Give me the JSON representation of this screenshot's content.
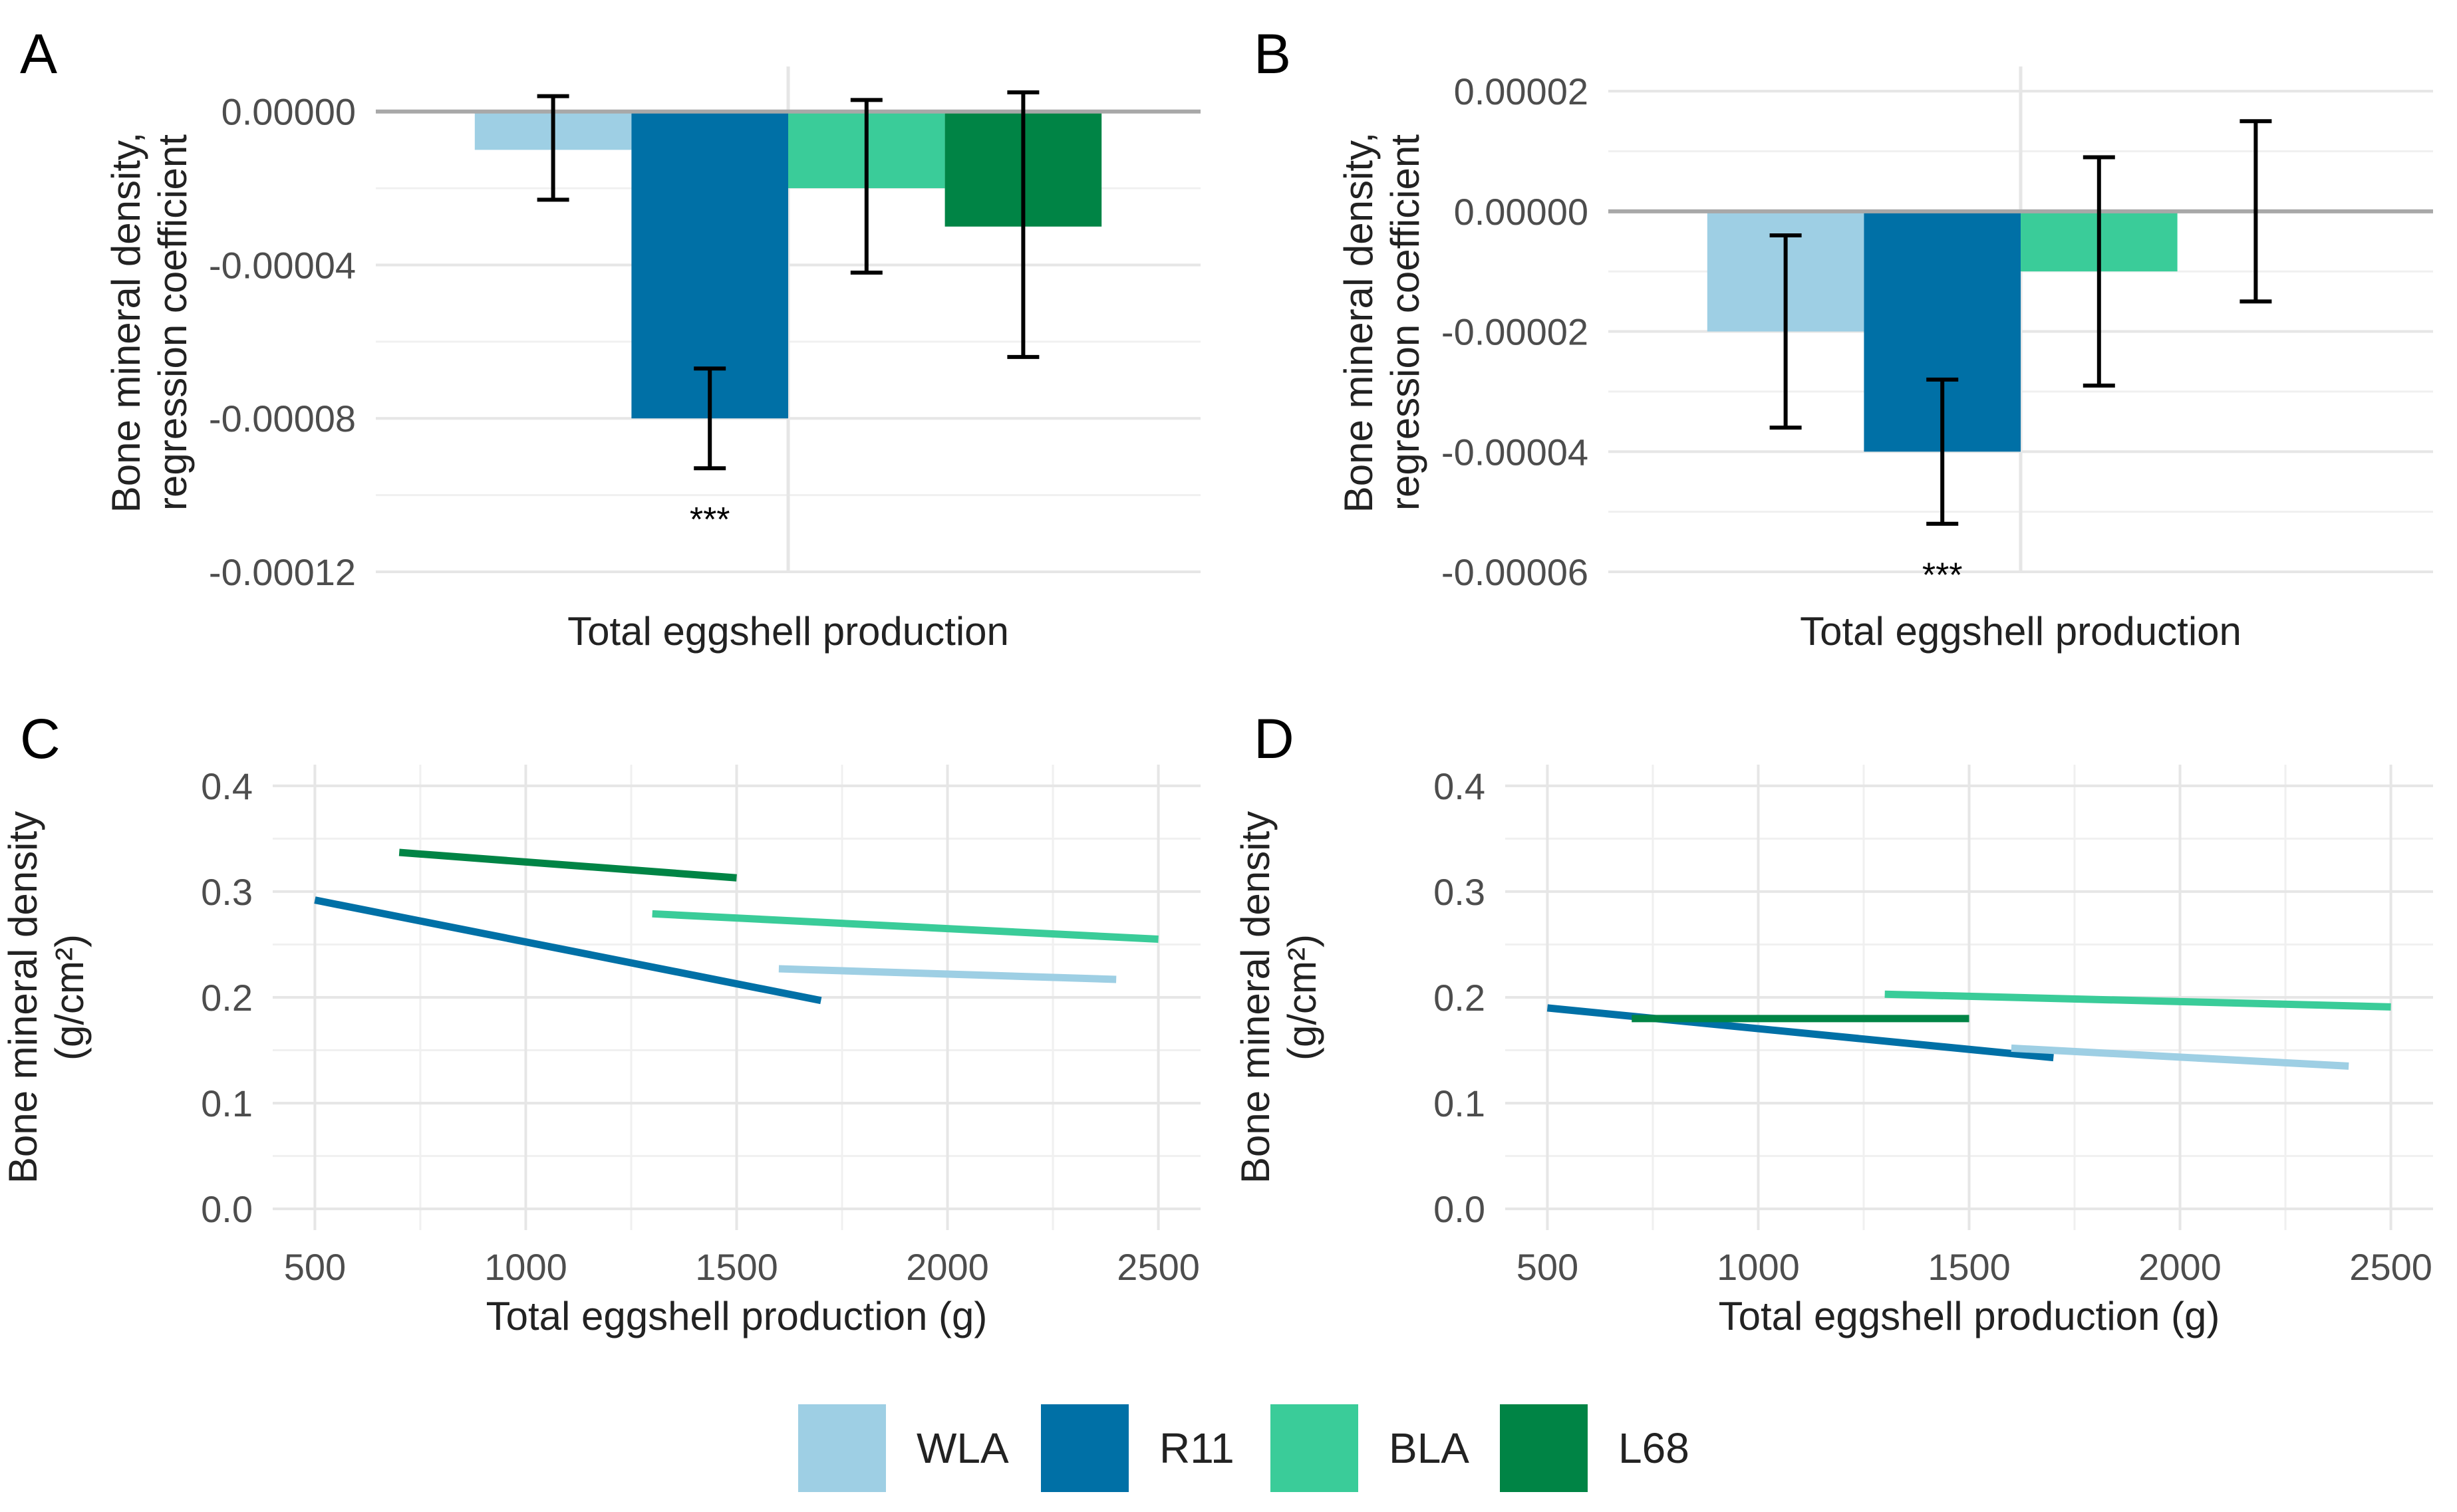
{
  "colors": {
    "WLA": "#9ecfe4",
    "R11": "#0070a6",
    "BLA": "#3acc99",
    "L68": "#008445",
    "grid": "#e6e6e6",
    "zero_line": "#a8a8a8",
    "text": "#222222",
    "tick": "#4d4d4d"
  },
  "legend": {
    "items": [
      {
        "key": "WLA",
        "label": "WLA"
      },
      {
        "key": "R11",
        "label": "R11"
      },
      {
        "key": "BLA",
        "label": "BLA"
      },
      {
        "key": "L68",
        "label": "L68"
      }
    ]
  },
  "chart_data": [
    {
      "panel": "A",
      "type": "bar",
      "xlabel": "Total eggshell production",
      "ylabel_lines": [
        "Bone mineral density,",
        "regression coefficient"
      ],
      "ylim": [
        -0.00012,
        1e-05
      ],
      "yticks": [
        0.0,
        -4e-05,
        -8e-05,
        -0.00012
      ],
      "ytick_labels": [
        "0.00000",
        "-0.00004",
        "-0.00008",
        "-0.00012"
      ],
      "bars": [
        {
          "group": "WLA",
          "value": -1e-05,
          "lower": -2.3e-05,
          "upper": 4e-06,
          "label": ""
        },
        {
          "group": "R11",
          "value": -8e-05,
          "lower": -9.3e-05,
          "upper": -6.7e-05,
          "label": "***"
        },
        {
          "group": "BLA",
          "value": -2e-05,
          "lower": -4.2e-05,
          "upper": 3e-06,
          "label": ""
        },
        {
          "group": "L68",
          "value": -3e-05,
          "lower": -6.4e-05,
          "upper": 5e-06,
          "label": ""
        }
      ]
    },
    {
      "panel": "B",
      "type": "bar",
      "xlabel": "Total eggshell production",
      "ylabel_lines": [
        "Bone mineral density,",
        "regression coefficient"
      ],
      "ylim": [
        -6e-05,
        2.3e-05
      ],
      "yticks": [
        2e-05,
        0.0,
        -2e-05,
        -4e-05,
        -6e-05
      ],
      "ytick_labels": [
        "0.00002",
        "0.00000",
        "-0.00002",
        "-0.00004",
        "-0.00006"
      ],
      "bars": [
        {
          "group": "WLA",
          "value": -2e-05,
          "lower": -3.6e-05,
          "upper": -4e-06,
          "label": ""
        },
        {
          "group": "R11",
          "value": -4e-05,
          "lower": -5.2e-05,
          "upper": -2.8e-05,
          "label": "***"
        },
        {
          "group": "BLA",
          "value": -1e-05,
          "lower": -2.9e-05,
          "upper": 9e-06,
          "label": ""
        },
        {
          "group": "L68",
          "value": 0.0,
          "lower": -1.5e-05,
          "upper": 1.5e-05,
          "label": ""
        }
      ]
    },
    {
      "panel": "C",
      "type": "line",
      "xlabel": "Total eggshell production (g)",
      "ylabel_lines": [
        "Bone mineral density",
        "(g/cm²)"
      ],
      "xlim": [
        400,
        2600
      ],
      "ylim": [
        -0.02,
        0.42
      ],
      "xticks": [
        500,
        1000,
        1500,
        2000,
        2500
      ],
      "yticks": [
        0.0,
        0.1,
        0.2,
        0.3,
        0.4
      ],
      "ytick_labels": [
        "0.0",
        "0.1",
        "0.2",
        "0.3",
        "0.4"
      ],
      "series": [
        {
          "group": "L68",
          "x": [
            700,
            1500
          ],
          "y": [
            0.337,
            0.313
          ]
        },
        {
          "group": "R11",
          "x": [
            500,
            1700
          ],
          "y": [
            0.292,
            0.197
          ]
        },
        {
          "group": "BLA",
          "x": [
            1300,
            2500
          ],
          "y": [
            0.279,
            0.255
          ]
        },
        {
          "group": "WLA",
          "x": [
            1600,
            2400
          ],
          "y": [
            0.227,
            0.217
          ]
        }
      ]
    },
    {
      "panel": "D",
      "type": "line",
      "xlabel": "Total eggshell production (g)",
      "ylabel_lines": [
        "Bone mineral density",
        "(g/cm²)"
      ],
      "xlim": [
        400,
        2600
      ],
      "ylim": [
        -0.02,
        0.42
      ],
      "xticks": [
        500,
        1000,
        1500,
        2000,
        2500
      ],
      "yticks": [
        0.0,
        0.1,
        0.2,
        0.3,
        0.4
      ],
      "ytick_labels": [
        "0.0",
        "0.1",
        "0.2",
        "0.3",
        "0.4"
      ],
      "series": [
        {
          "group": "BLA",
          "x": [
            1300,
            2500
          ],
          "y": [
            0.203,
            0.191
          ]
        },
        {
          "group": "R11",
          "x": [
            500,
            1700
          ],
          "y": [
            0.19,
            0.143
          ]
        },
        {
          "group": "L68",
          "x": [
            700,
            1500
          ],
          "y": [
            0.18,
            0.18
          ]
        },
        {
          "group": "WLA",
          "x": [
            1600,
            2400
          ],
          "y": [
            0.152,
            0.135
          ]
        }
      ]
    }
  ]
}
